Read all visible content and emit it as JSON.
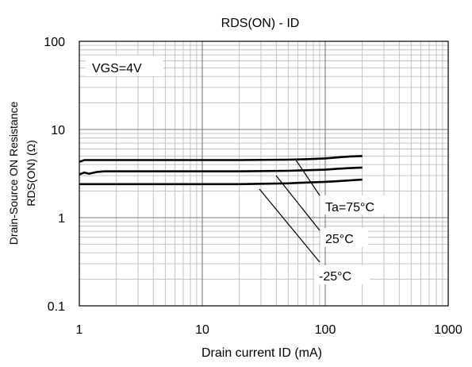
{
  "chart_data": {
    "type": "line",
    "title": "RDS(ON) - ID",
    "xlabel": "Drain current  ID (mA)",
    "ylabel_line1": "Drain-Source ON  Resistance",
    "ylabel_line2": "RDS(ON) (Ω)",
    "x_scale": "log",
    "y_scale": "log",
    "xlim": [
      1,
      1000
    ],
    "ylim": [
      0.1,
      100
    ],
    "x_ticks": [
      "1",
      "10",
      "100",
      "1000"
    ],
    "y_ticks": [
      "100",
      "10",
      "1",
      "0.1"
    ],
    "grid": true,
    "condition_label": "VGS=4V",
    "series": [
      {
        "name": "Ta=75°C",
        "x": [
          1,
          1.1,
          2,
          5,
          10,
          20,
          50,
          70,
          100,
          130,
          160,
          200
        ],
        "y": [
          4.3,
          4.5,
          4.5,
          4.5,
          4.5,
          4.5,
          4.55,
          4.6,
          4.7,
          4.85,
          4.95,
          5.0
        ]
      },
      {
        "name": "25°C",
        "x": [
          1,
          1.1,
          1.2,
          1.4,
          1.6,
          2,
          5,
          10,
          20,
          50,
          70,
          100,
          130,
          160,
          200
        ],
        "y": [
          3.1,
          3.25,
          3.15,
          3.3,
          3.35,
          3.35,
          3.35,
          3.35,
          3.35,
          3.4,
          3.45,
          3.5,
          3.6,
          3.65,
          3.7
        ]
      },
      {
        "name": "-25°C",
        "x": [
          1,
          2,
          5,
          10,
          20,
          50,
          70,
          100,
          130,
          160,
          200
        ],
        "y": [
          2.4,
          2.4,
          2.4,
          2.4,
          2.4,
          2.45,
          2.5,
          2.55,
          2.6,
          2.65,
          2.7
        ]
      }
    ],
    "annotations": [
      "Ta=75°C",
      "25°C",
      "-25°C"
    ]
  }
}
